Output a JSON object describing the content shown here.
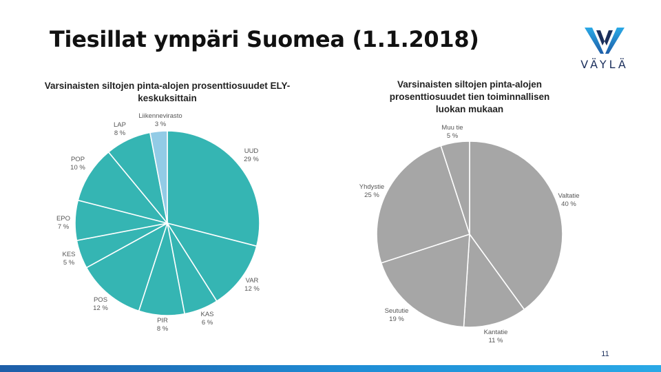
{
  "slide": {
    "title": "Tiesillat ympäri Suomea (1.1.2018)",
    "page_number": "11"
  },
  "logo": {
    "wordmark": "VÄYLÄ",
    "icon": "vayla-v-logo"
  },
  "colors": {
    "chart1_main": "#35b5b3",
    "chart1_highlight": "#92cbe6",
    "chart2_main": "#a6a6a6",
    "logo_blue": "#1b2f5c",
    "accent_cyan": "#2aa9e6"
  },
  "chart_data": [
    {
      "type": "pie",
      "title": "Varsinaisten siltojen pinta-alojen prosenttiosuudet ELY-keskuksittain",
      "categories": [
        "UUD",
        "VAR",
        "KAS",
        "PIR",
        "POS",
        "KES",
        "EPO",
        "POP",
        "LAP",
        "Liikennevirasto"
      ],
      "values": [
        29,
        12,
        6,
        8,
        12,
        5,
        7,
        10,
        8,
        3
      ],
      "value_labels": [
        "29 %",
        "12 %",
        "6 %",
        "8 %",
        "12 %",
        "5 %",
        "7 %",
        "10 %",
        "8 %",
        "3 %"
      ]
    },
    {
      "type": "pie",
      "title": "Varsinaisten siltojen pinta-alojen prosenttiosuudet tien toiminnallisen luokan mukaan",
      "categories": [
        "Valtatie",
        "Kantatie",
        "Seututie",
        "Yhdystie",
        "Muu tie"
      ],
      "values": [
        40,
        11,
        19,
        25,
        5
      ],
      "value_labels": [
        "40 %",
        "11 %",
        "19 %",
        "25 %",
        "5 %"
      ]
    }
  ]
}
